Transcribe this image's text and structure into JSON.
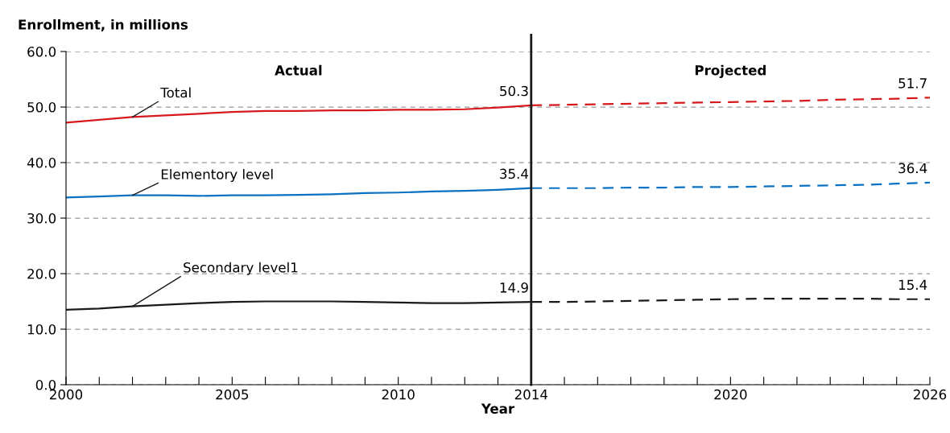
{
  "chart_data": {
    "type": "line",
    "ylabel": "Enrollment, in millions",
    "xlabel": "Year",
    "xlim": [
      2000,
      2026
    ],
    "ylim": [
      0,
      60
    ],
    "xticks": [
      2000,
      {
        "value": 2001,
        "label": null
      },
      {
        "value": 2002,
        "label": null
      },
      {
        "value": 2003,
        "label": null
      },
      {
        "value": 2004,
        "label": null
      },
      2005,
      {
        "value": 2006,
        "label": null
      },
      {
        "value": 2007,
        "label": null
      },
      {
        "value": 2008,
        "label": null
      },
      {
        "value": 2009,
        "label": null
      },
      2010,
      {
        "value": 2011,
        "label": null
      },
      {
        "value": 2012,
        "label": null
      },
      {
        "value": 2013,
        "label": null
      },
      2014,
      {
        "value": 2015,
        "label": null
      },
      {
        "value": 2016,
        "label": null
      },
      {
        "value": 2017,
        "label": null
      },
      {
        "value": 2018,
        "label": null
      },
      {
        "value": 2019,
        "label": null
      },
      2020,
      {
        "value": 2021,
        "label": null
      },
      {
        "value": 2022,
        "label": null
      },
      {
        "value": 2023,
        "label": null
      },
      {
        "value": 2024,
        "label": null
      },
      {
        "value": 2025,
        "label": null
      },
      2026
    ],
    "yticks": [
      {
        "value": 0,
        "label": "0.0"
      },
      {
        "value": 10,
        "label": "10.0"
      },
      {
        "value": 20,
        "label": "20.0"
      },
      {
        "value": 30,
        "label": "30.0"
      },
      {
        "value": 40,
        "label": "40.0"
      },
      {
        "value": 50,
        "label": "50.0"
      },
      {
        "value": 60,
        "label": "60.0"
      }
    ],
    "grid": "y",
    "marker": "none",
    "annotations": [
      "Actual",
      "Projected"
    ],
    "ref_lines": [
      {
        "axis": "x",
        "value": 2014,
        "color": "#1a1a1a",
        "line_style": "solid"
      }
    ],
    "series": [
      {
        "name": "Total",
        "color": "#d7191c",
        "line_style": "solid",
        "x": [
          2000,
          2001,
          2002,
          2003,
          2004,
          2005,
          2006,
          2007,
          2008,
          2009,
          2010,
          2011,
          2012,
          2013,
          2014
        ],
        "values": [
          47.2,
          47.7,
          48.2,
          48.5,
          48.8,
          49.1,
          49.3,
          49.3,
          49.4,
          49.4,
          49.5,
          49.5,
          49.6,
          49.9,
          50.3
        ],
        "value_labels": [
          null,
          null,
          null,
          null,
          null,
          null,
          null,
          null,
          null,
          null,
          null,
          null,
          null,
          null,
          "50.3"
        ]
      },
      {
        "color": "#d7191c",
        "line_style": "dashed",
        "x": [
          2014,
          2015,
          2016,
          2017,
          2018,
          2019,
          2020,
          2021,
          2022,
          2023,
          2024,
          2025,
          2026
        ],
        "values": [
          50.3,
          50.4,
          50.5,
          50.6,
          50.7,
          50.8,
          50.9,
          51.0,
          51.1,
          51.3,
          51.4,
          51.5,
          51.7
        ],
        "value_labels": [
          null,
          null,
          null,
          null,
          null,
          null,
          null,
          null,
          null,
          null,
          null,
          null,
          "51.7"
        ]
      },
      {
        "name": "Elementory level",
        "color": "#0a72c4",
        "line_style": "solid",
        "x": [
          2000,
          2001,
          2002,
          2003,
          2004,
          2005,
          2006,
          2007,
          2008,
          2009,
          2010,
          2011,
          2012,
          2013,
          2014
        ],
        "values": [
          33.7,
          33.9,
          34.1,
          34.1,
          34.0,
          34.1,
          34.1,
          34.2,
          34.3,
          34.5,
          34.6,
          34.8,
          34.9,
          35.1,
          35.4
        ],
        "value_labels": [
          null,
          null,
          null,
          null,
          null,
          null,
          null,
          null,
          null,
          null,
          null,
          null,
          null,
          null,
          "35.4"
        ]
      },
      {
        "color": "#0a72c4",
        "line_style": "dashed",
        "x": [
          2014,
          2015,
          2016,
          2017,
          2018,
          2019,
          2020,
          2021,
          2022,
          2023,
          2024,
          2025,
          2026
        ],
        "values": [
          35.4,
          35.4,
          35.4,
          35.5,
          35.5,
          35.6,
          35.6,
          35.7,
          35.8,
          35.9,
          36.0,
          36.2,
          36.4
        ],
        "value_labels": [
          null,
          null,
          null,
          null,
          null,
          null,
          null,
          null,
          null,
          null,
          null,
          null,
          "36.4"
        ]
      },
      {
        "name": "Secondary level1",
        "color": "#1a1a1a",
        "line_style": "solid",
        "x": [
          2000,
          2001,
          2002,
          2003,
          2004,
          2005,
          2006,
          2007,
          2008,
          2009,
          2010,
          2011,
          2012,
          2013,
          2014
        ],
        "values": [
          13.5,
          13.7,
          14.1,
          14.4,
          14.7,
          14.9,
          15.0,
          15.0,
          15.0,
          14.9,
          14.8,
          14.7,
          14.7,
          14.8,
          14.9
        ],
        "value_labels": [
          null,
          null,
          null,
          null,
          null,
          null,
          null,
          null,
          null,
          null,
          null,
          null,
          null,
          null,
          "14.9"
        ]
      },
      {
        "color": "#1a1a1a",
        "line_style": "dashed",
        "x": [
          2014,
          2015,
          2016,
          2017,
          2018,
          2019,
          2020,
          2021,
          2022,
          2023,
          2024,
          2025,
          2026
        ],
        "values": [
          14.9,
          14.9,
          15.0,
          15.1,
          15.2,
          15.3,
          15.4,
          15.5,
          15.5,
          15.5,
          15.5,
          15.4,
          15.4
        ],
        "value_labels": [
          null,
          null,
          null,
          null,
          null,
          null,
          null,
          null,
          null,
          null,
          null,
          null,
          "15.4"
        ]
      }
    ]
  }
}
